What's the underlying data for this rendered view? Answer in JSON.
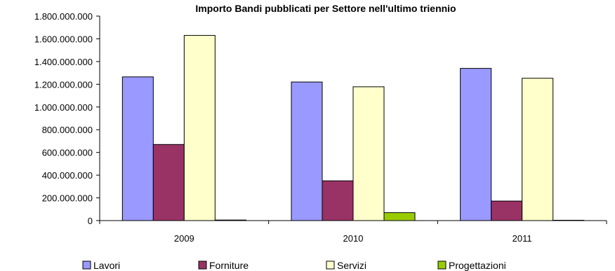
{
  "chart_data": {
    "type": "bar",
    "title": "Importo Bandi pubblicati per Settore nell'ultimo triennio",
    "xlabel": "",
    "ylabel": "",
    "categories": [
      "2009",
      "2010",
      "2011"
    ],
    "series": [
      {
        "name": "Lavori",
        "color": "#9999ff",
        "values": [
          1265000000,
          1220000000,
          1340000000
        ]
      },
      {
        "name": "Forniture",
        "color": "#993366",
        "values": [
          670000000,
          350000000,
          172000000
        ]
      },
      {
        "name": "Servizi",
        "color": "#ffffcc",
        "values": [
          1630000000,
          1178000000,
          1253000000
        ]
      },
      {
        "name": "Progettazioni",
        "color": "#99cc00",
        "values": [
          5000000,
          70000000,
          3000000
        ]
      }
    ],
    "ylim": [
      0,
      1800000000
    ],
    "ytick_labels": [
      "0",
      "200.000.000",
      "400.000.000",
      "600.000.000",
      "800.000.000",
      "1.000.000.000",
      "1.200.000.000",
      "1.400.000.000",
      "1.600.000.000",
      "1.800.000.000"
    ],
    "grid": false,
    "legend_position": "bottom"
  }
}
